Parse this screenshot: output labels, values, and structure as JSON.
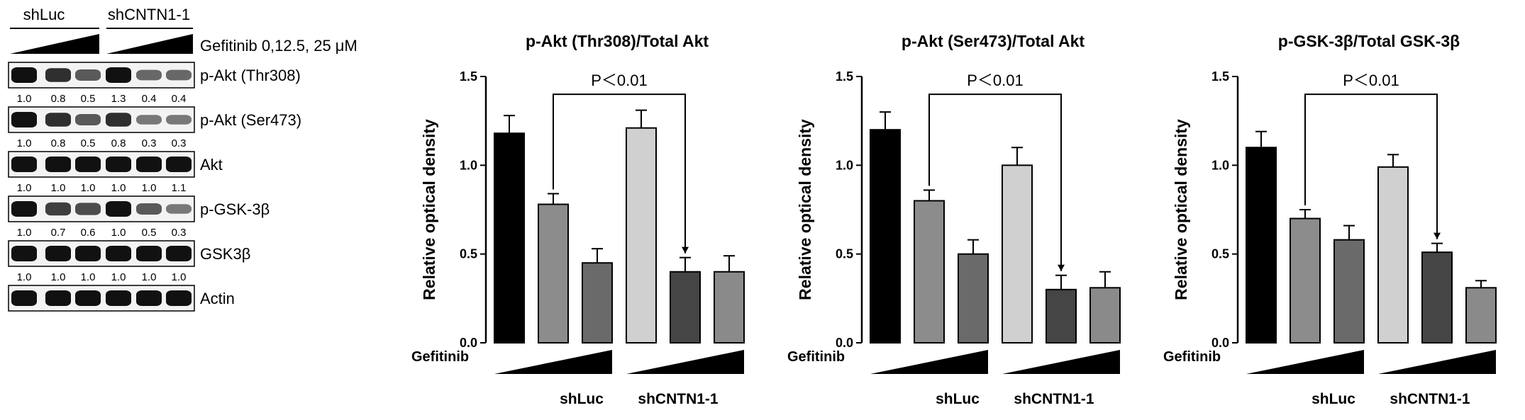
{
  "blot": {
    "group_labels": [
      "shLuc",
      "shCNTN1-1"
    ],
    "treatment_label": "Gefitinib 0,12.5, 25 μM",
    "rows": [
      {
        "label": "p-Akt (Thr308)",
        "values": [
          "1.0",
          "0.8",
          "0.5",
          "1.3",
          "0.4",
          "0.4"
        ],
        "intensity": [
          1.0,
          0.8,
          0.5,
          1.0,
          0.4,
          0.4
        ]
      },
      {
        "label": "p-Akt (Ser473)",
        "values": [
          "1.0",
          "0.8",
          "0.5",
          "0.8",
          "0.3",
          "0.3"
        ],
        "intensity": [
          1.0,
          0.8,
          0.5,
          0.8,
          0.3,
          0.3
        ]
      },
      {
        "label": "Akt",
        "values": [
          "1.0",
          "1.0",
          "1.0",
          "1.0",
          "1.0",
          "1.1"
        ],
        "intensity": [
          1.0,
          1.0,
          1.0,
          1.0,
          1.0,
          1.0
        ]
      },
      {
        "label": "p-GSK-3β",
        "values": [
          "1.0",
          "0.7",
          "0.6",
          "1.0",
          "0.5",
          "0.3"
        ],
        "intensity": [
          1.0,
          0.7,
          0.6,
          1.0,
          0.5,
          0.3
        ]
      },
      {
        "label": "GSK3β",
        "values": [
          "1.0",
          "1.0",
          "1.0",
          "1.0",
          "1.0",
          "1.0"
        ],
        "intensity": [
          1.0,
          1.0,
          1.0,
          1.0,
          1.0,
          1.0
        ]
      },
      {
        "label": "Actin",
        "values": [],
        "intensity": [
          1.0,
          1.0,
          1.0,
          1.0,
          1.0,
          1.0
        ]
      }
    ]
  },
  "chart_data": [
    {
      "type": "bar",
      "title": "p-Akt (Thr308)/Total Akt",
      "ylabel": "Relative optical density",
      "xlabel": "Gefitinib",
      "ylim": [
        0,
        1.5
      ],
      "yticks": [
        "0.0",
        "0.5",
        "1.0",
        "1.5"
      ],
      "values": [
        1.18,
        0.78,
        0.45,
        1.21,
        0.4,
        0.4
      ],
      "errors": [
        0.1,
        0.06,
        0.08,
        0.1,
        0.08,
        0.09
      ],
      "groups": [
        "shLuc",
        "shCNTN1-1"
      ],
      "annotation": "P＜0.01",
      "bracket_bars": [
        1,
        4
      ],
      "grid": false,
      "legend": "none"
    },
    {
      "type": "bar",
      "title": "p-Akt (Ser473)/Total Akt",
      "ylabel": "Relative optical density",
      "xlabel": "Gefitinib",
      "ylim": [
        0,
        1.5
      ],
      "yticks": [
        "0.0",
        "0.5",
        "1.0",
        "1.5"
      ],
      "values": [
        1.2,
        0.8,
        0.5,
        1.0,
        0.3,
        0.31
      ],
      "errors": [
        0.1,
        0.06,
        0.08,
        0.1,
        0.08,
        0.09
      ],
      "groups": [
        "shLuc",
        "shCNTN1-1"
      ],
      "annotation": "P＜0.01",
      "bracket_bars": [
        1,
        4
      ],
      "grid": false,
      "legend": "none"
    },
    {
      "type": "bar",
      "title": "p-GSK-3β/Total GSK-3β",
      "ylabel": "Relative optical density",
      "xlabel": "Gefitinib",
      "ylim": [
        0,
        1.5
      ],
      "yticks": [
        "0.0",
        "0.5",
        "1.0",
        "1.5"
      ],
      "values": [
        1.1,
        0.7,
        0.58,
        0.99,
        0.51,
        0.31
      ],
      "errors": [
        0.09,
        0.05,
        0.08,
        0.07,
        0.05,
        0.04
      ],
      "groups": [
        "shLuc",
        "shCNTN1-1"
      ],
      "annotation": "P＜0.01",
      "bracket_bars": [
        1,
        4
      ],
      "grid": false,
      "legend": "none"
    }
  ],
  "colors": {
    "bar_fills": [
      "#000000",
      "#8c8c8c",
      "#6a6a6a",
      "#d0d0d0",
      "#454545",
      "#8a8a8a"
    ],
    "axis": "#000000",
    "band": "#111111"
  }
}
